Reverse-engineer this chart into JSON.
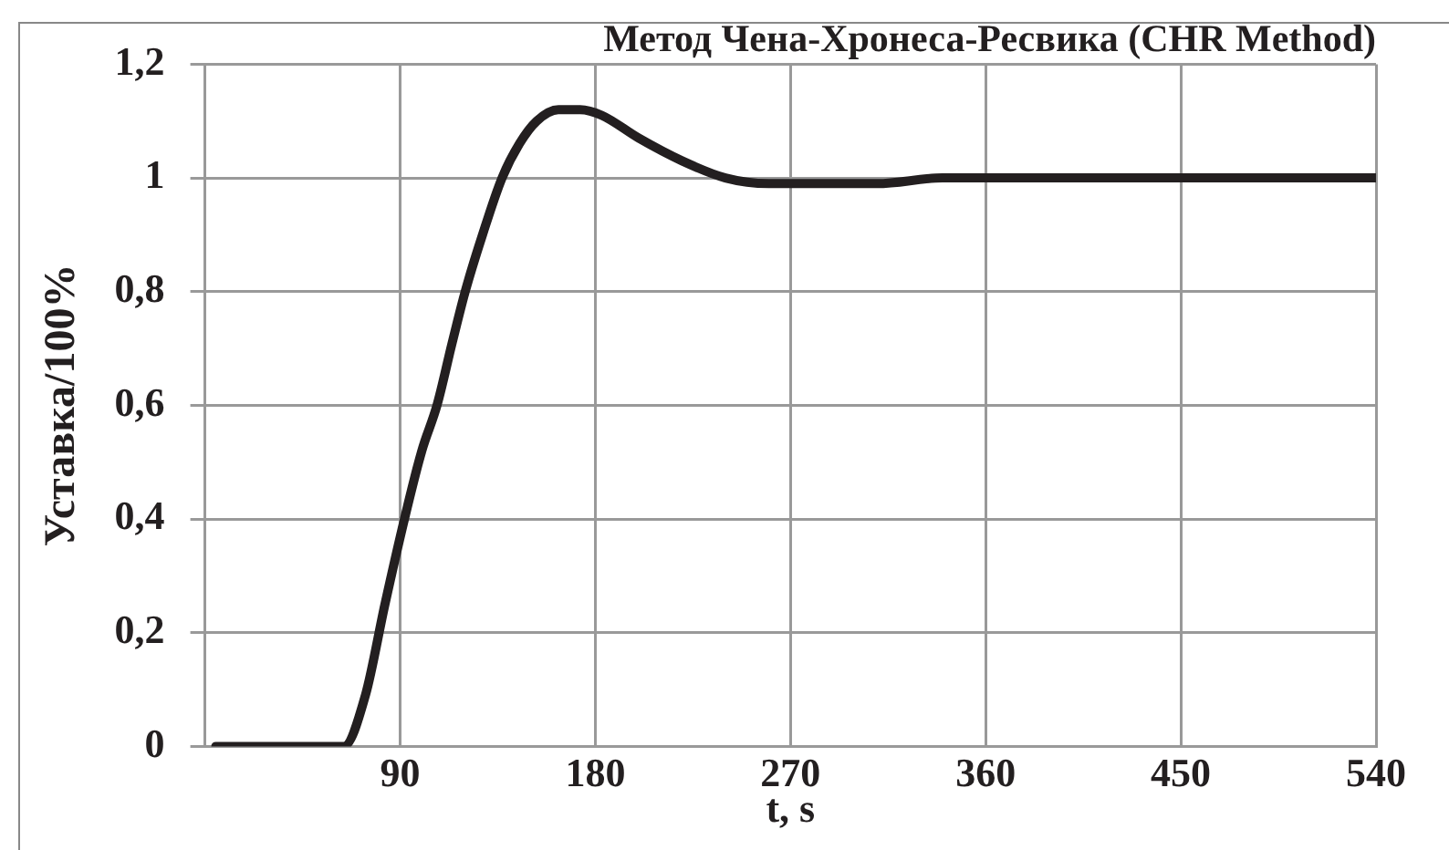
{
  "chart_data": {
    "type": "line",
    "title": "Метод Чена-Хронеса-Ресвика (CHR Method)",
    "xlabel": "t, s",
    "ylabel": "Уставка/100%",
    "x": [
      5,
      64,
      74,
      83,
      92,
      100,
      107,
      114,
      120,
      128,
      137,
      145,
      153,
      163,
      173,
      183,
      200,
      220,
      240,
      260,
      280,
      310,
      340,
      380,
      420,
      480,
      540
    ],
    "series": [
      {
        "color": "#231f20",
        "values": [
          0,
          0,
          0.09,
          0.25,
          0.4,
          0.52,
          0.6,
          0.71,
          0.8,
          0.9,
          1.0,
          1.06,
          1.1,
          1.12,
          1.12,
          1.11,
          1.07,
          1.03,
          1.0,
          0.99,
          0.99,
          0.99,
          1.0,
          1.0,
          1.0,
          1.0,
          1.0
        ]
      }
    ],
    "xlim": [
      0,
      540
    ],
    "xticks": [
      90,
      180,
      270,
      360,
      450,
      540
    ],
    "ylim": [
      0,
      1.2
    ],
    "yticks": [
      0,
      {
        "value": 0.2,
        "label": "0,2"
      },
      {
        "value": 0.4,
        "label": "0,4"
      },
      {
        "value": 0.6,
        "label": "0,6"
      },
      {
        "value": 0.8,
        "label": "0,8"
      },
      1,
      {
        "value": 1.2,
        "label": "1,2"
      }
    ],
    "grid": true,
    "legend": false,
    "marker": "none",
    "line_style": "solid"
  }
}
